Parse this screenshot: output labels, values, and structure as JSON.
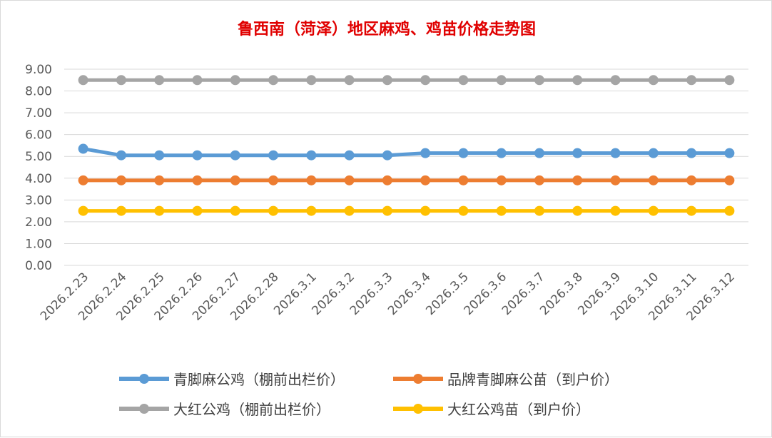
{
  "chart_data": {
    "type": "line",
    "title": "鲁西南（菏泽）地区麻鸡、鸡苗价格走势图",
    "xlabel": "",
    "ylabel": "",
    "ylim": [
      0,
      9
    ],
    "yticks": [
      "0.00",
      "1.00",
      "2.00",
      "3.00",
      "4.00",
      "5.00",
      "6.00",
      "7.00",
      "8.00",
      "9.00"
    ],
    "categories": [
      "2026.2.23",
      "2026.2.24",
      "2026.2.25",
      "2026.2.26",
      "2026.2.27",
      "2026.2.28",
      "2026.3.1",
      "2026.3.2",
      "2026.3.3",
      "2026.3.4",
      "2026.3.5",
      "2026.3.6",
      "2026.3.7",
      "2026.3.8",
      "2026.3.9",
      "2026.3.10",
      "2026.3.11",
      "2026.3.12"
    ],
    "grid": true,
    "legend_position": "bottom",
    "series": [
      {
        "name": "青脚麻公鸡（棚前出栏价）",
        "color": "#5b9bd5",
        "values": [
          5.35,
          5.05,
          5.05,
          5.05,
          5.05,
          5.05,
          5.05,
          5.05,
          5.05,
          5.15,
          5.15,
          5.15,
          5.15,
          5.15,
          5.15,
          5.15,
          5.15,
          5.15
        ]
      },
      {
        "name": "品牌青脚麻公苗（到户价）",
        "color": "#ed7d31",
        "values": [
          3.9,
          3.9,
          3.9,
          3.9,
          3.9,
          3.9,
          3.9,
          3.9,
          3.9,
          3.9,
          3.9,
          3.9,
          3.9,
          3.9,
          3.9,
          3.9,
          3.9,
          3.9
        ]
      },
      {
        "name": "大红公鸡（棚前出栏价）",
        "color": "#a5a5a5",
        "values": [
          8.5,
          8.5,
          8.5,
          8.5,
          8.5,
          8.5,
          8.5,
          8.5,
          8.5,
          8.5,
          8.5,
          8.5,
          8.5,
          8.5,
          8.5,
          8.5,
          8.5,
          8.5
        ]
      },
      {
        "name": "大红公鸡苗（到户价）",
        "color": "#ffc000",
        "values": [
          2.5,
          2.5,
          2.5,
          2.5,
          2.5,
          2.5,
          2.5,
          2.5,
          2.5,
          2.5,
          2.5,
          2.5,
          2.5,
          2.5,
          2.5,
          2.5,
          2.5,
          2.5
        ]
      }
    ]
  }
}
